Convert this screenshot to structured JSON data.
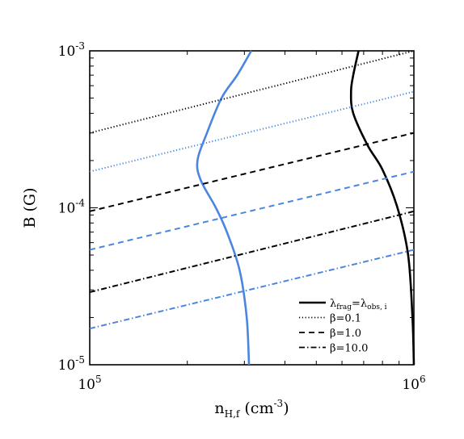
{
  "chart_data": {
    "type": "line",
    "title": "",
    "xlabel": {
      "main": "n",
      "sub": "H,f",
      "after": " (cm",
      "sup": "-3",
      "close": ")"
    },
    "ylabel": "B (G)",
    "xscale": "log",
    "yscale": "log",
    "xlim": [
      100000,
      1000000
    ],
    "ylim": [
      1e-05,
      0.001
    ],
    "x_ticks": [
      {
        "value": 100000,
        "base": "10",
        "exp": "5"
      },
      {
        "value": 1000000,
        "base": "10",
        "exp": "6"
      }
    ],
    "y_ticks": [
      {
        "value": 1e-05,
        "base": "10",
        "exp": "-5"
      },
      {
        "value": 0.0001,
        "base": "10",
        "exp": "-4"
      },
      {
        "value": 0.001,
        "base": "10",
        "exp": "-3"
      }
    ],
    "grid": false,
    "legend_position": "bottom-right",
    "legend": [
      {
        "style": "solid",
        "parts": [
          {
            "text": "λ"
          },
          {
            "text": "frag",
            "sub": true
          },
          {
            "text": "=λ"
          },
          {
            "text": "obs, i",
            "sub": true
          }
        ]
      },
      {
        "style": "dotted",
        "parts": [
          {
            "text": "β=0.1"
          }
        ]
      },
      {
        "style": "dashed",
        "parts": [
          {
            "text": "β=1.0"
          }
        ]
      },
      {
        "style": "dashdot",
        "parts": [
          {
            "text": "β=10.0"
          }
        ]
      }
    ],
    "colors": {
      "black": "#000000",
      "blue": "#4a86e0"
    },
    "series": [
      {
        "kind": "curve",
        "color": "black",
        "style": "solid",
        "points": [
          [
            1000000,
            1e-05
          ],
          [
            990000,
            2e-05
          ],
          [
            960000,
            5e-05
          ],
          [
            890000,
            0.0001
          ],
          [
            800000,
            0.000175
          ],
          [
            720000,
            0.00025
          ],
          [
            650000,
            0.0004
          ],
          [
            640000,
            0.00055
          ],
          [
            650000,
            0.0007
          ],
          [
            675000,
            0.001
          ]
        ]
      },
      {
        "kind": "curve",
        "color": "blue",
        "style": "solid",
        "points": [
          [
            310000,
            1e-05
          ],
          [
            305000,
            2e-05
          ],
          [
            290000,
            4e-05
          ],
          [
            265000,
            7e-05
          ],
          [
            245000,
            0.0001
          ],
          [
            220000,
            0.00015
          ],
          [
            215000,
            0.0002
          ],
          [
            230000,
            0.0003
          ],
          [
            255000,
            0.0005
          ],
          [
            285000,
            0.0007
          ],
          [
            315000,
            0.001
          ]
        ]
      },
      {
        "kind": "line",
        "color": "black",
        "style": "dotted",
        "points": [
          [
            100000,
            0.0003
          ],
          [
            1000000,
            0.001
          ]
        ]
      },
      {
        "kind": "line",
        "color": "blue",
        "style": "dotted",
        "points": [
          [
            100000,
            0.00017
          ],
          [
            1000000,
            0.00055
          ]
        ]
      },
      {
        "kind": "line",
        "color": "black",
        "style": "dashed",
        "points": [
          [
            100000,
            9.5e-05
          ],
          [
            1000000,
            0.0003
          ]
        ]
      },
      {
        "kind": "line",
        "color": "blue",
        "style": "dashed",
        "points": [
          [
            100000,
            5.4e-05
          ],
          [
            1000000,
            0.00017
          ]
        ]
      },
      {
        "kind": "line",
        "color": "black",
        "style": "dashdot",
        "points": [
          [
            100000,
            2.9e-05
          ],
          [
            1000000,
            9.5e-05
          ]
        ]
      },
      {
        "kind": "line",
        "color": "blue",
        "style": "dashdot",
        "points": [
          [
            100000,
            1.7e-05
          ],
          [
            1000000,
            5.4e-05
          ]
        ]
      }
    ]
  }
}
